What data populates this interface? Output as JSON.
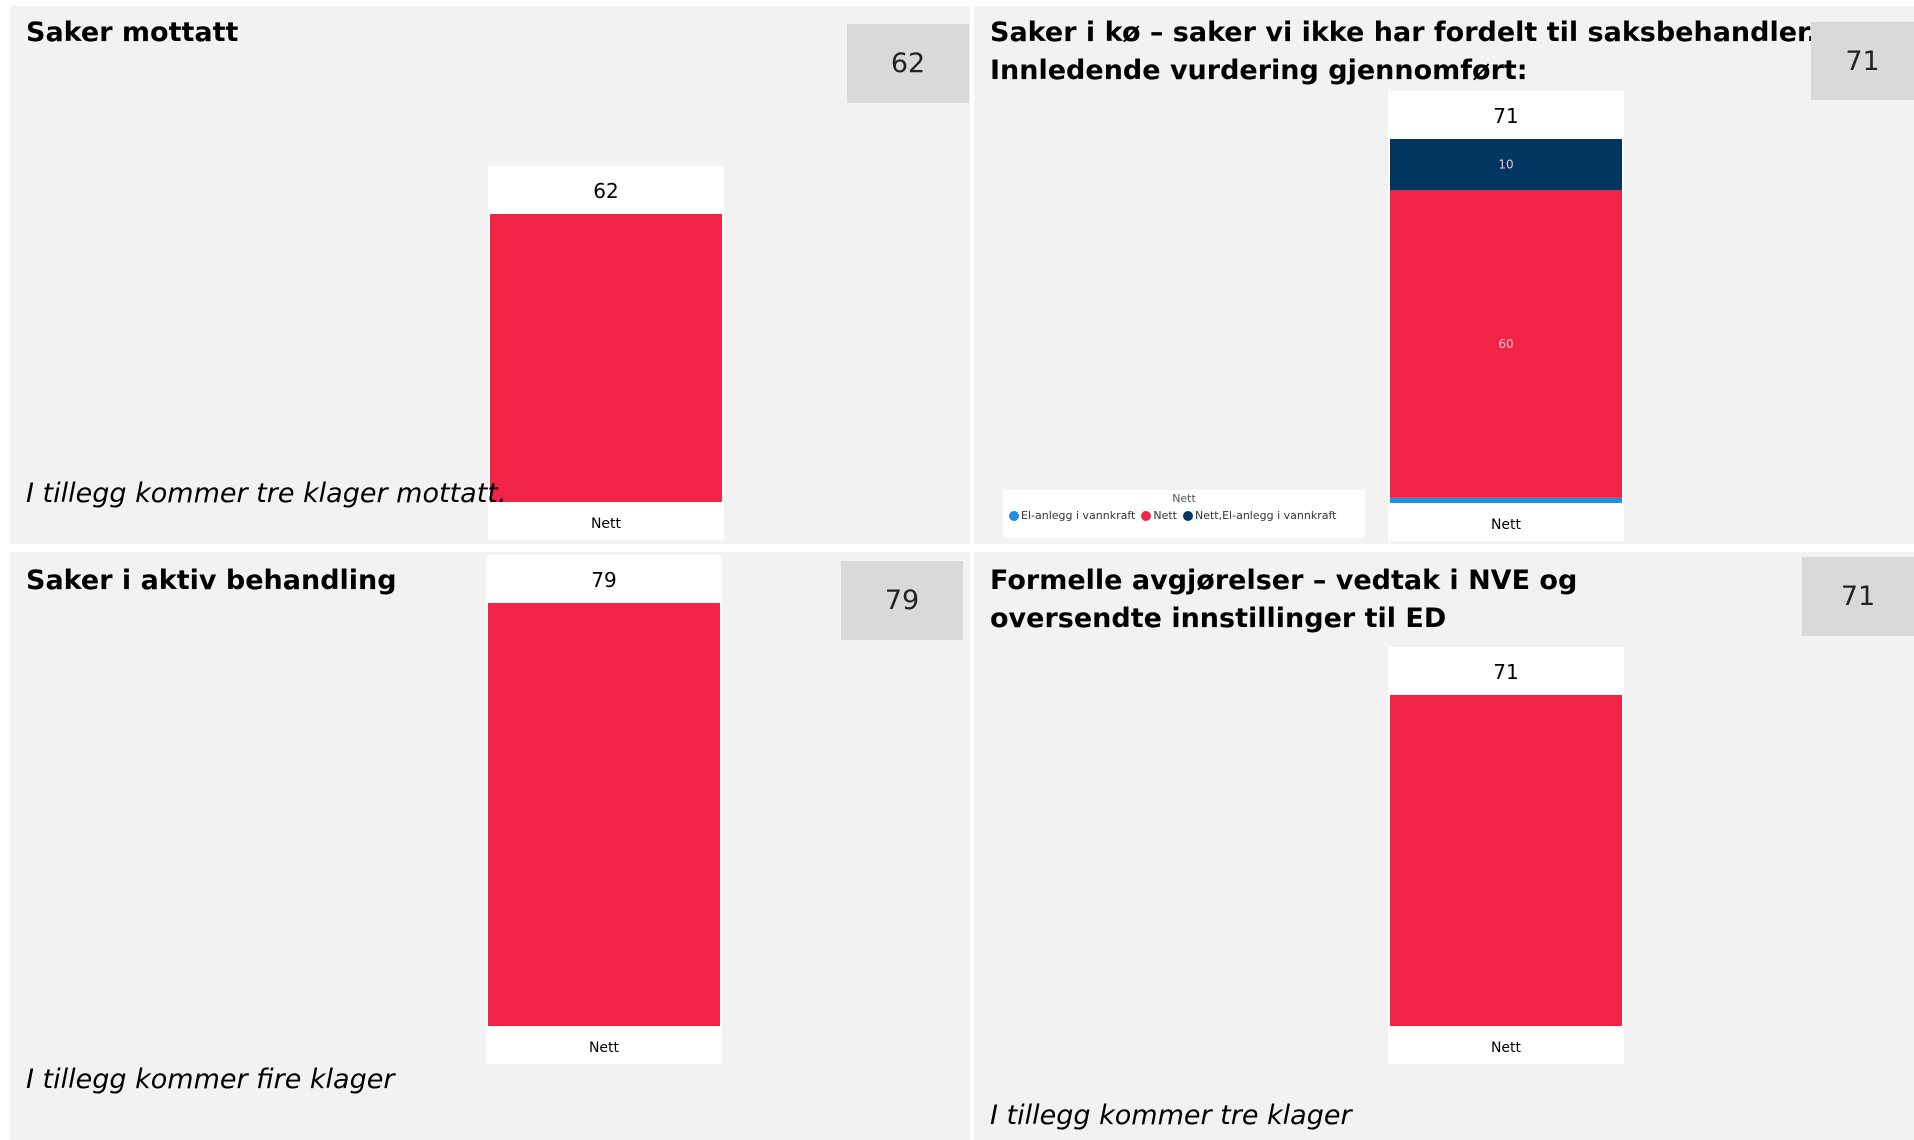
{
  "colors": {
    "nett": "#f22446",
    "nett_el": "#003660",
    "el": "#1f8ee0",
    "panel": "#f2f2f2",
    "badge": "#d9d9d9"
  },
  "panels": [
    {
      "title": "Saker mottatt",
      "badge": "62",
      "note": "I tillegg kommer tre klager mottatt."
    },
    {
      "title_lines": [
        "Saker i kø – saker vi ikke har fordelt til saksbehandler.",
        "Innledende vurdering gjennomført:"
      ],
      "badge": "71",
      "note": ""
    },
    {
      "title": "Saker i aktiv behandling",
      "badge": "79",
      "note": "I tillegg kommer fire klager"
    },
    {
      "title_lines": [
        "Formelle avgjørelser – vedtak i NVE og",
        "oversendte innstillinger til ED"
      ],
      "badge": "71",
      "note": "I tillegg kommer tre klager"
    }
  ],
  "legend": {
    "title": "Nett",
    "items": [
      {
        "label": "El-anlegg i vannkraft",
        "color": "#1f8ee0"
      },
      {
        "label": "Nett",
        "color": "#f22446"
      },
      {
        "label": "Nett,El-anlegg i vannkraft",
        "color": "#003660"
      }
    ]
  },
  "chart_data": [
    {
      "type": "bar",
      "categories": [
        "Nett"
      ],
      "series": [
        {
          "name": "Nett",
          "values": [
            62
          ],
          "color": "#f22446"
        }
      ],
      "total_label": "62",
      "ylim": [
        0,
        62
      ]
    },
    {
      "type": "bar",
      "stacked": true,
      "categories": [
        "Nett"
      ],
      "series": [
        {
          "name": "El-anlegg i vannkraft",
          "values": [
            1
          ],
          "color": "#1f8ee0"
        },
        {
          "name": "Nett",
          "values": [
            60
          ],
          "color": "#f22446",
          "label": "60"
        },
        {
          "name": "Nett,El-anlegg i vannkraft",
          "values": [
            10
          ],
          "color": "#003660",
          "label": "10"
        }
      ],
      "total_label": "71",
      "ylim": [
        0,
        71
      ]
    },
    {
      "type": "bar",
      "categories": [
        "Nett"
      ],
      "series": [
        {
          "name": "Nett",
          "values": [
            79
          ],
          "color": "#f22446"
        }
      ],
      "total_label": "79",
      "ylim": [
        0,
        79
      ]
    },
    {
      "type": "bar",
      "categories": [
        "Nett"
      ],
      "series": [
        {
          "name": "Nett",
          "values": [
            71
          ],
          "color": "#f22446"
        }
      ],
      "total_label": "71",
      "ylim": [
        0,
        71
      ]
    }
  ]
}
